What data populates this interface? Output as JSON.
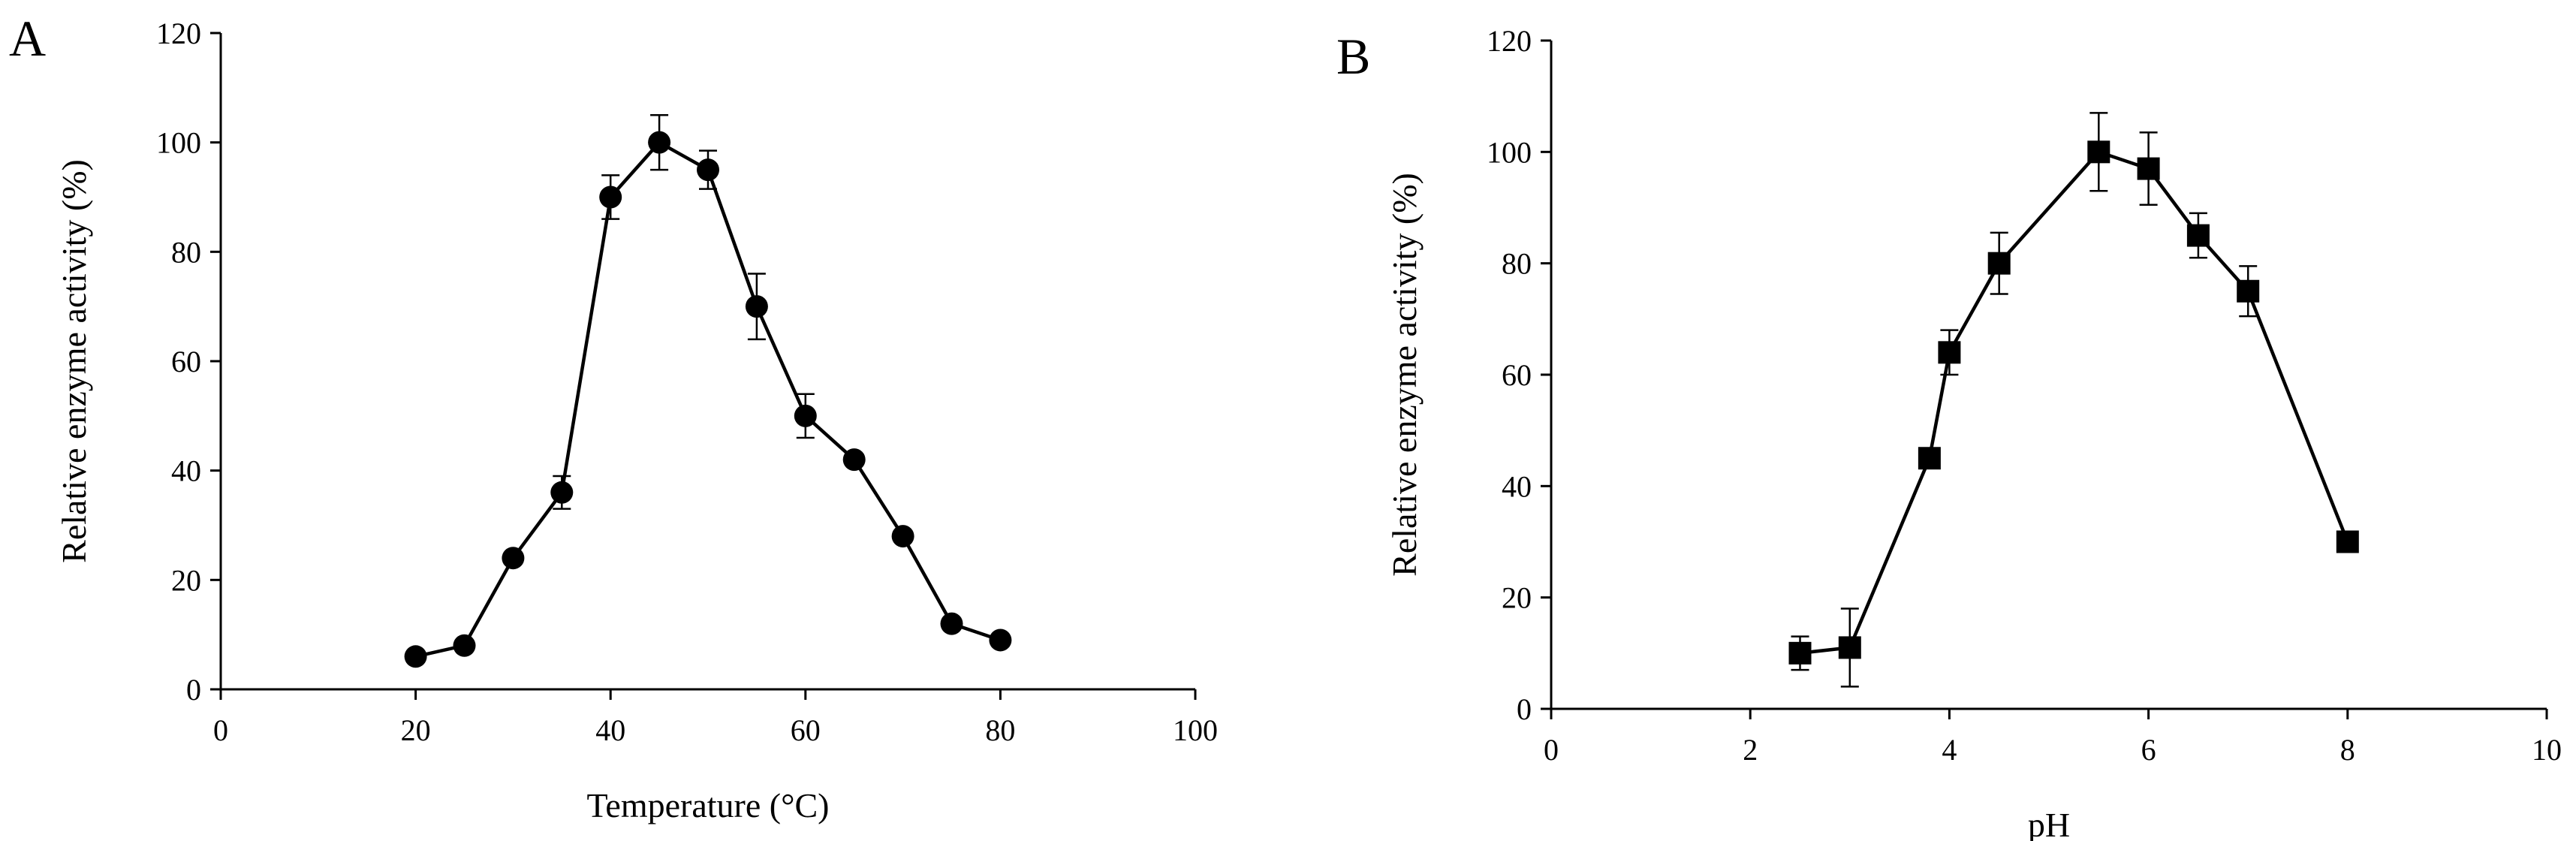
{
  "chart_data": [
    {
      "type": "line",
      "panel_label": "A",
      "title": "",
      "xlabel": "Temperature  (°C)",
      "ylabel": "Relative enzyme activity  (%)",
      "xlim": [
        0,
        100
      ],
      "ylim": [
        0,
        120
      ],
      "xticks": [
        0,
        20,
        40,
        60,
        80,
        100
      ],
      "yticks": [
        0,
        20,
        40,
        60,
        80,
        100,
        120
      ],
      "grid": false,
      "marker": "circle",
      "colors": {
        "line": "#000000",
        "marker": "#000000"
      },
      "series": [
        {
          "x": [
            20,
            25,
            30,
            35,
            40,
            45,
            50,
            55,
            60,
            65,
            70,
            75,
            80
          ],
          "y": [
            6,
            8,
            24,
            36,
            90,
            100,
            95,
            70,
            50,
            42,
            28,
            12,
            9
          ],
          "error": [
            1,
            1,
            1,
            3,
            4,
            5,
            3.5,
            6,
            4,
            1,
            1,
            1,
            1
          ]
        }
      ]
    },
    {
      "type": "line",
      "panel_label": "B",
      "title": "",
      "xlabel": "pH",
      "ylabel": "Relative enzyme activity  (%)",
      "xlim": [
        0,
        10
      ],
      "ylim": [
        0,
        120
      ],
      "xticks": [
        0,
        2,
        4,
        6,
        8,
        10
      ],
      "yticks": [
        0,
        20,
        40,
        60,
        80,
        100,
        120
      ],
      "grid": false,
      "marker": "square",
      "colors": {
        "line": "#000000",
        "marker": "#000000"
      },
      "series": [
        {
          "x": [
            2.5,
            3,
            3.8,
            4,
            4.5,
            5.5,
            6,
            6.5,
            7,
            8
          ],
          "y": [
            10,
            11,
            45,
            64,
            80,
            100,
            97,
            85,
            75,
            30
          ],
          "error": [
            3,
            7,
            1,
            4,
            5.5,
            7,
            6.5,
            4,
            4.5,
            1
          ]
        }
      ]
    }
  ]
}
